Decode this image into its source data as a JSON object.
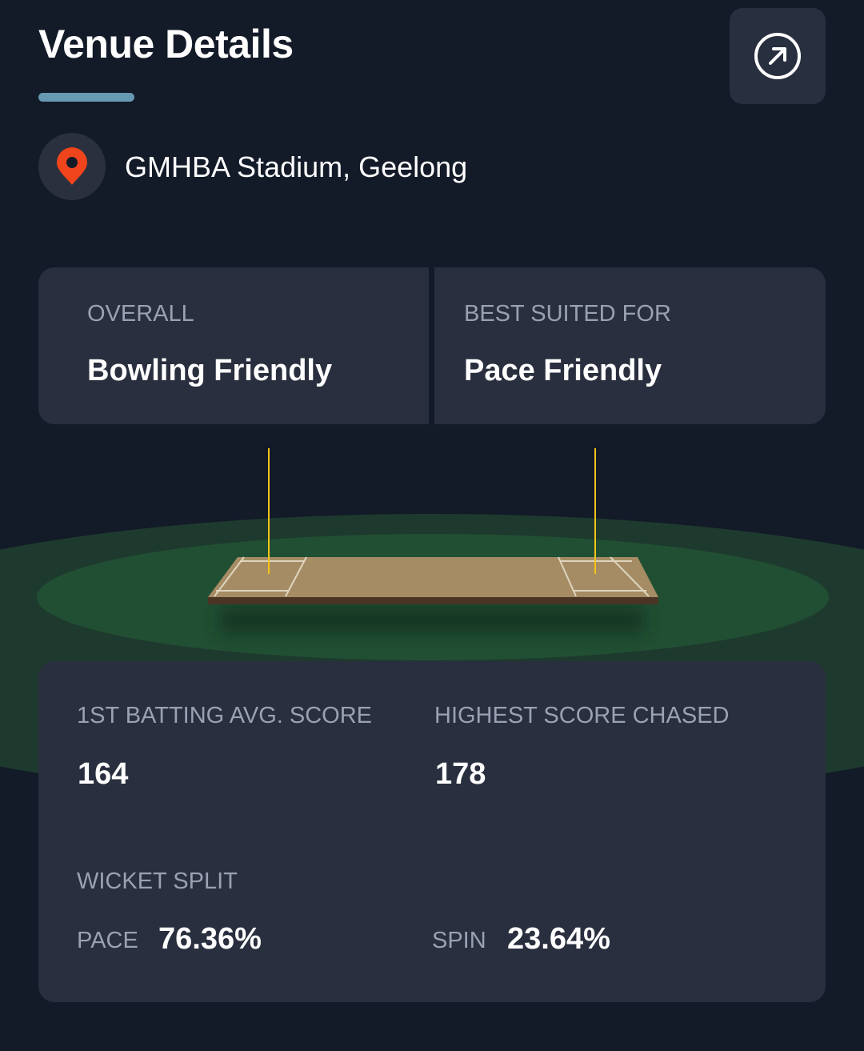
{
  "header": {
    "title": "Venue Details",
    "external_link_icon": "arrow-up-right-circle-icon"
  },
  "venue": {
    "icon": "map-pin-icon",
    "name": "GMHBA Stadium, Geelong"
  },
  "pitch_summary": {
    "overall": {
      "label": "OVERALL",
      "value": "Bowling Friendly"
    },
    "best_suited": {
      "label": "BEST SUITED FOR",
      "value": "Pace Friendly"
    }
  },
  "stats": {
    "first_batting_avg": {
      "label": "1ST BATTING AVG. SCORE",
      "value": "164"
    },
    "highest_chased": {
      "label": "HIGHEST SCORE CHASED",
      "value": "178"
    },
    "wicket_split": {
      "label": "WICKET SPLIT",
      "pace": {
        "label": "PACE",
        "value": "76.36%"
      },
      "spin": {
        "label": "SPIN",
        "value": "23.64%"
      }
    }
  },
  "colors": {
    "background": "#131a28",
    "card": "#292f3e",
    "accent": "#6899b3",
    "pin": "#f0441c",
    "marker": "#f5c518",
    "field_outer": "#1e3a2e",
    "field_inner": "#214f33"
  }
}
